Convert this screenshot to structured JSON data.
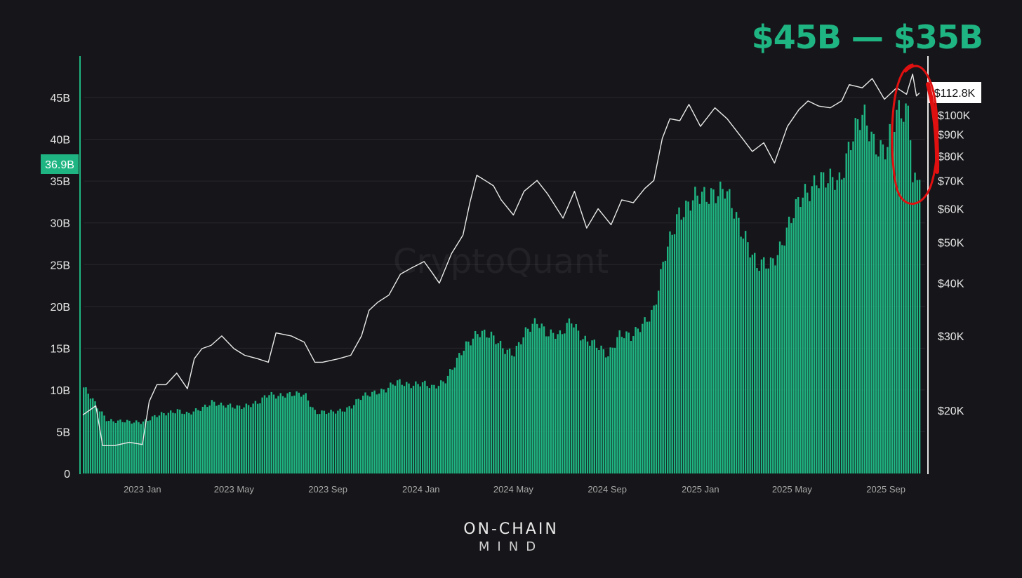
{
  "headline": "$45B — $35B",
  "watermark": "CryptoQuant",
  "brand": {
    "line1": "ON-CHAIN",
    "line2": "MIND"
  },
  "colors": {
    "background": "#16161a",
    "bars": "#1fb582",
    "price_line": "#e9e9e9",
    "annotation": "#e01010",
    "grid": "#26262c"
  },
  "chart_data": {
    "type": "bar",
    "title": "",
    "xlabel": "",
    "ylabel": "",
    "x_ticks": [
      "2023 Jan",
      "2023 May",
      "2023 Sep",
      "2024 Jan",
      "2024 May",
      "2024 Sep",
      "2025 Jan",
      "2025 May",
      "2025 Sep"
    ],
    "x_range": [
      "2022-10-15",
      "2025-10-15"
    ],
    "left_axis": {
      "ticks": [
        "0",
        "5B",
        "10B",
        "15B",
        "20B",
        "25B",
        "30B",
        "35B",
        "40B",
        "45B"
      ],
      "ylim": [
        0,
        50
      ],
      "unit": "B",
      "current_value_label": "36.9B",
      "current_value": 36.9
    },
    "right_axis": {
      "scale": "log",
      "ticks": [
        "$20K",
        "$30K",
        "$40K",
        "$50K",
        "$60K",
        "$70K",
        "$80K",
        "$90K",
        "$100K"
      ],
      "tick_values": [
        20,
        30,
        40,
        50,
        60,
        70,
        80,
        90,
        100
      ],
      "unit": "K USD",
      "current_value_label": "$112.8K",
      "current_value": 112.8
    },
    "grid": true,
    "series": [
      {
        "type": "bar",
        "axis": "left",
        "x": [
          "2022-10-15",
          "2022-11-01",
          "2022-11-15",
          "2022-12-01",
          "2022-12-15",
          "2023-01-01",
          "2023-01-15",
          "2023-02-01",
          "2023-02-15",
          "2023-03-01",
          "2023-03-15",
          "2023-04-01",
          "2023-04-15",
          "2023-05-01",
          "2023-05-15",
          "2023-06-01",
          "2023-06-15",
          "2023-07-01",
          "2023-07-15",
          "2023-08-01",
          "2023-08-15",
          "2023-09-01",
          "2023-09-15",
          "2023-10-01",
          "2023-10-15",
          "2023-11-01",
          "2023-11-15",
          "2023-12-01",
          "2023-12-15",
          "2024-01-01",
          "2024-01-15",
          "2024-02-01",
          "2024-02-15",
          "2024-03-01",
          "2024-03-15",
          "2024-04-01",
          "2024-04-15",
          "2024-05-01",
          "2024-05-15",
          "2024-06-01",
          "2024-06-15",
          "2024-07-01",
          "2024-07-15",
          "2024-08-01",
          "2024-08-15",
          "2024-09-01",
          "2024-09-15",
          "2024-10-01",
          "2024-10-15",
          "2024-11-01",
          "2024-11-15",
          "2024-12-01",
          "2024-12-15",
          "2025-01-01",
          "2025-01-15",
          "2025-02-01",
          "2025-02-15",
          "2025-03-01",
          "2025-03-15",
          "2025-04-01",
          "2025-04-15",
          "2025-05-01",
          "2025-05-15",
          "2025-06-01",
          "2025-06-15",
          "2025-07-01",
          "2025-07-15",
          "2025-08-01",
          "2025-08-15",
          "2025-09-01",
          "2025-09-15",
          "2025-10-01",
          "2025-10-05",
          "2025-10-10",
          "2025-10-15"
        ],
        "values": [
          10.3,
          8.0,
          6.5,
          6.2,
          6.1,
          6.3,
          6.7,
          7.2,
          7.7,
          7.0,
          7.6,
          8.7,
          8.0,
          8.0,
          8.2,
          8.3,
          9.6,
          9.4,
          9.3,
          9.6,
          7.3,
          7.2,
          7.6,
          8.0,
          9.1,
          9.9,
          10.0,
          10.9,
          10.8,
          10.7,
          10.2,
          11.4,
          13.2,
          15.5,
          17.3,
          16.2,
          15.1,
          14.6,
          16.5,
          18.4,
          16.9,
          16.2,
          18.6,
          16.0,
          15.2,
          14.4,
          16.6,
          16.1,
          18.1,
          19.6,
          26.0,
          31.5,
          31.8,
          33.2,
          34.0,
          33.5,
          30.8,
          28.5,
          24.5,
          25.0,
          27.5,
          30.5,
          33.5,
          35.5,
          34.5,
          35.2,
          40.0,
          42.3,
          40.0,
          39.0,
          42.5,
          44.0,
          36.0,
          35.0,
          36.9
        ]
      },
      {
        "type": "line",
        "axis": "right",
        "x": [
          "2022-10-15",
          "2022-11-01",
          "2022-11-10",
          "2022-11-25",
          "2022-12-15",
          "2023-01-01",
          "2023-01-10",
          "2023-01-20",
          "2023-02-01",
          "2023-02-15",
          "2023-03-01",
          "2023-03-10",
          "2023-03-20",
          "2023-04-01",
          "2023-04-15",
          "2023-05-01",
          "2023-05-15",
          "2023-06-01",
          "2023-06-15",
          "2023-06-25",
          "2023-07-15",
          "2023-08-01",
          "2023-08-15",
          "2023-08-25",
          "2023-09-15",
          "2023-10-01",
          "2023-10-15",
          "2023-10-25",
          "2023-11-05",
          "2023-11-20",
          "2023-12-05",
          "2023-12-20",
          "2024-01-05",
          "2024-01-15",
          "2024-01-25",
          "2024-02-10",
          "2024-02-25",
          "2024-03-05",
          "2024-03-14",
          "2024-03-25",
          "2024-04-05",
          "2024-04-15",
          "2024-05-01",
          "2024-05-15",
          "2024-06-01",
          "2024-06-15",
          "2024-07-05",
          "2024-07-20",
          "2024-08-05",
          "2024-08-20",
          "2024-09-06",
          "2024-09-20",
          "2024-10-05",
          "2024-10-20",
          "2024-11-01",
          "2024-11-12",
          "2024-11-22",
          "2024-12-05",
          "2024-12-17",
          "2025-01-01",
          "2025-01-20",
          "2025-02-05",
          "2025-02-25",
          "2025-03-10",
          "2025-03-25",
          "2025-04-08",
          "2025-04-25",
          "2025-05-10",
          "2025-05-22",
          "2025-06-05",
          "2025-06-20",
          "2025-07-05",
          "2025-07-15",
          "2025-08-01",
          "2025-08-14",
          "2025-08-30",
          "2025-09-15",
          "2025-09-28",
          "2025-10-06",
          "2025-10-11",
          "2025-10-15"
        ],
        "values": [
          19.5,
          20.5,
          16.5,
          16.5,
          16.8,
          16.6,
          21.0,
          23.0,
          23.0,
          24.5,
          22.5,
          26.5,
          28.0,
          28.5,
          30.0,
          28.0,
          27.0,
          26.5,
          26.0,
          30.5,
          30.0,
          29.0,
          26.0,
          26.0,
          26.5,
          27.0,
          30.0,
          34.5,
          36.0,
          37.5,
          42.0,
          43.5,
          45.0,
          42.5,
          40.0,
          47.0,
          52.0,
          62.0,
          72.0,
          70.0,
          68.0,
          63.0,
          58.0,
          66.0,
          70.0,
          65.0,
          57.0,
          66.0,
          54.0,
          60.0,
          55.0,
          63.0,
          62.0,
          67.0,
          70.0,
          88.0,
          98.0,
          97.0,
          106.0,
          94.0,
          104.0,
          98.0,
          88.0,
          82.0,
          86.0,
          77.0,
          94.0,
          103.0,
          108.0,
          105.0,
          104.0,
          108.0,
          118.0,
          116.0,
          122.0,
          109.0,
          116.0,
          112.0,
          125.0,
          111.0,
          112.8
        ]
      }
    ],
    "annotations": [
      {
        "type": "hand-drawn-ellipse",
        "color": "red",
        "x_range": [
          "2025-09-25",
          "2025-10-18"
        ]
      }
    ]
  }
}
